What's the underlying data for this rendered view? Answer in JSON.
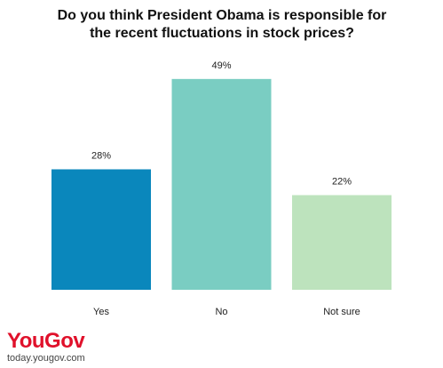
{
  "chart_data": {
    "type": "bar",
    "title": "Do you think President Obama is responsible for the recent fluctuations in stock prices?",
    "categories": [
      "Yes",
      "No",
      "Not sure"
    ],
    "values": [
      28,
      49,
      22
    ],
    "value_labels": [
      "28%",
      "49%",
      "22%"
    ],
    "colors": [
      "#0a87bc",
      "#7acdc2",
      "#bde3bd"
    ]
  },
  "footer": {
    "logo": "YouGov",
    "url": "today.yougov.com"
  }
}
